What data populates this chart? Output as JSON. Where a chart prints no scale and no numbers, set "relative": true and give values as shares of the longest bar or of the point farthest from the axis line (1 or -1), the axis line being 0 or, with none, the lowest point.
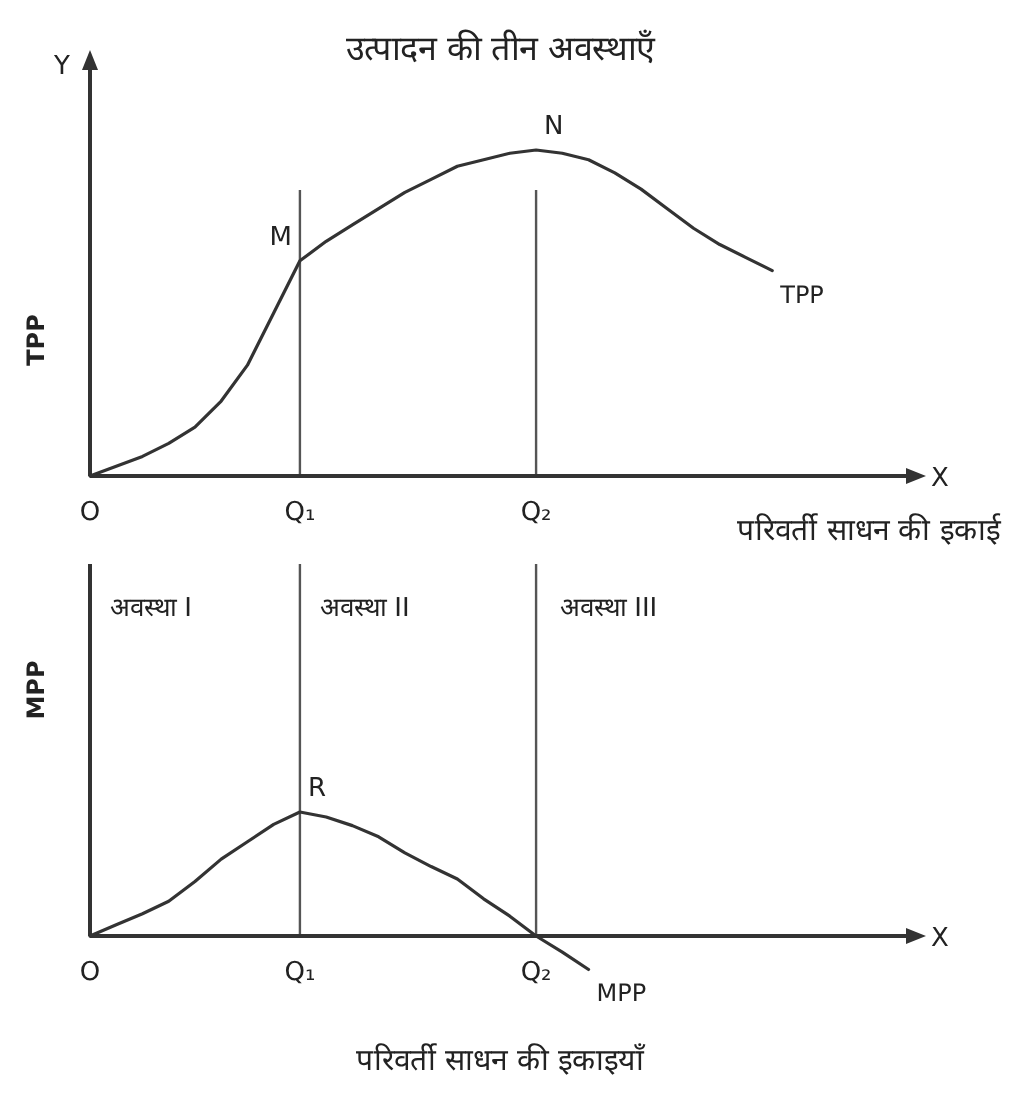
{
  "chart_data": [
    {
      "type": "line",
      "title": "उत्पादन की तीन अवस्थाएँ",
      "xlabel": "परिवर्ती साधन की इकाई",
      "ylabel": "TPP",
      "relative": true,
      "legend": false,
      "categories": [
        "O",
        null,
        null,
        null,
        null,
        null,
        null,
        null,
        "Q₁",
        null,
        null,
        null,
        null,
        null,
        null,
        null,
        null,
        "Q₂",
        null,
        null,
        null,
        null,
        null,
        null,
        null,
        null,
        null,
        null,
        null,
        null,
        null,
        null
      ],
      "series": [
        {
          "name": "TPP",
          "color": "#333333",
          "values": [
            0,
            0.03,
            0.06,
            0.1,
            0.15,
            0.23,
            0.34,
            0.5,
            0.66,
            0.72,
            0.77,
            0.82,
            0.87,
            0.91,
            0.95,
            0.97,
            0.99,
            1.0,
            0.99,
            0.97,
            0.93,
            0.88,
            0.82,
            0.76,
            0.71,
            0.67,
            0.63,
            null,
            null,
            null,
            null,
            null
          ]
        }
      ],
      "ref_lines": [
        {
          "axis": "x",
          "value": "Q₁"
        },
        {
          "axis": "x",
          "value": "Q₂"
        }
      ],
      "annotations": [
        {
          "text": "M",
          "x": "Q₁",
          "y": 0.66
        },
        {
          "text": "N",
          "x": "Q₂",
          "y": 1.0
        },
        "Y",
        "X"
      ]
    },
    {
      "type": "line",
      "xlabel": "परिवर्ती साधन की इकाइयाँ",
      "ylabel": "MPP",
      "relative": true,
      "legend": false,
      "categories": [
        "O",
        null,
        null,
        null,
        null,
        null,
        null,
        null,
        "Q₁",
        null,
        null,
        null,
        null,
        null,
        null,
        null,
        null,
        "Q₂",
        null,
        null,
        null,
        null,
        null,
        null,
        null,
        null,
        null,
        null,
        null,
        null,
        null,
        null
      ],
      "series": [
        {
          "name": "MPP",
          "color": "#333333",
          "values": [
            0,
            0.09,
            0.18,
            0.28,
            0.44,
            0.62,
            0.76,
            0.9,
            1.0,
            0.96,
            0.89,
            0.8,
            0.67,
            0.56,
            0.46,
            0.3,
            0.16,
            0,
            -0.13,
            -0.27,
            null,
            null,
            null,
            null,
            null,
            null,
            null,
            null,
            null,
            null,
            null,
            null
          ]
        }
      ],
      "ref_lines": [
        {
          "axis": "x",
          "value": "Q₁"
        },
        {
          "axis": "x",
          "value": "Q₂"
        }
      ],
      "annotations": [
        {
          "text": "R",
          "x": "Q₁",
          "y": 1.0
        },
        "अवस्था I",
        "अवस्था II",
        "अवस्था III",
        "X"
      ]
    }
  ]
}
